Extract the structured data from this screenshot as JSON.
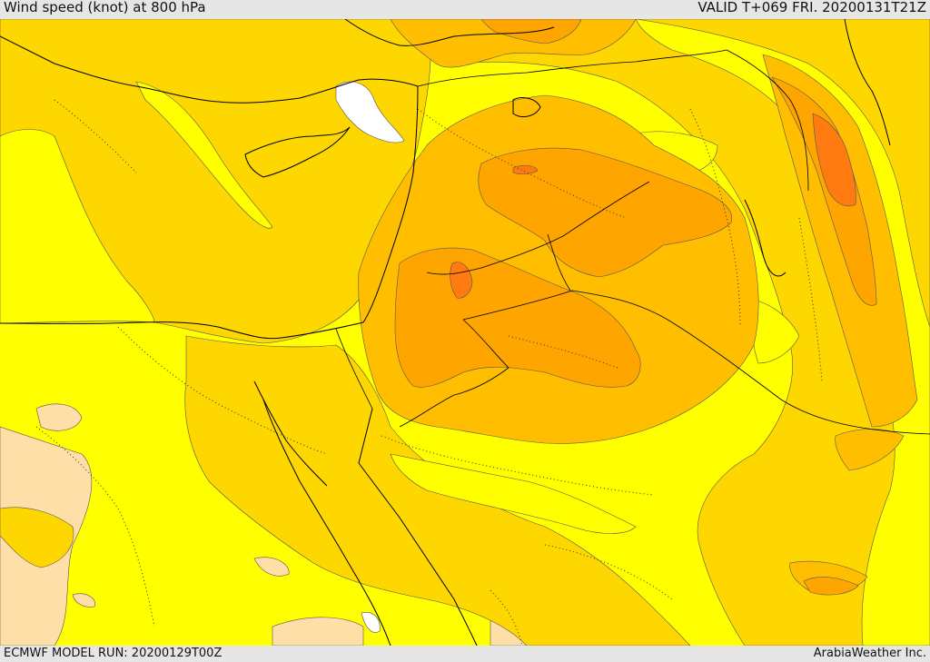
{
  "header": {
    "title": "Wind speed (knot) at 800 hPa",
    "valid_time": "VALID T+069 FRI. 20200131T21Z"
  },
  "footer": {
    "model_run": "ECMWF MODEL RUN: 20200129T00Z",
    "credit": "ArabiaWeather Inc."
  },
  "colors": {
    "light_tan": "#ffdfa8",
    "yellow": "#ffff00",
    "gold": "#ffd700",
    "amber": "#ffbf00",
    "orange_light": "#ffa500",
    "orange": "#ff8c00",
    "orange_dark": "#ff7b10",
    "white": "#ffffff"
  }
}
